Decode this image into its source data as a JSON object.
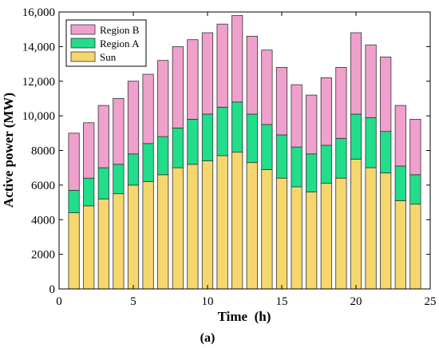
{
  "chart_data": {
    "type": "bar",
    "stacked": true,
    "x": [
      1,
      2,
      3,
      4,
      5,
      6,
      7,
      8,
      9,
      10,
      11,
      12,
      13,
      14,
      15,
      16,
      17,
      18,
      19,
      20,
      21,
      22,
      23,
      24
    ],
    "series": [
      {
        "name": "Sun",
        "color": "#f5d76e",
        "values": [
          4400,
          4800,
          5200,
          5500,
          6000,
          6200,
          6600,
          7000,
          7200,
          7400,
          7700,
          7900,
          7300,
          6900,
          6400,
          5900,
          5600,
          6100,
          6400,
          7500,
          7000,
          6700,
          5100,
          4900
        ]
      },
      {
        "name": "Region A",
        "color": "#22dd8a",
        "values": [
          1300,
          1600,
          1800,
          1700,
          1800,
          2200,
          2200,
          2300,
          2600,
          2700,
          2800,
          2900,
          2800,
          2600,
          2500,
          2300,
          2200,
          2200,
          2300,
          2600,
          2900,
          2400,
          2000,
          1700
        ]
      },
      {
        "name": "Region B",
        "color": "#f0a0cc",
        "values": [
          3300,
          3200,
          3600,
          3800,
          4200,
          4000,
          4400,
          4700,
          4600,
          4700,
          4800,
          5000,
          4500,
          4300,
          3900,
          3600,
          3400,
          3900,
          4100,
          4700,
          4200,
          4300,
          3500,
          3200
        ]
      }
    ],
    "xlabel": "Time  (h)",
    "ylabel": "Active power (MW)",
    "xlim": [
      0,
      25
    ],
    "ylim": [
      0,
      16000
    ],
    "x_ticks": [
      0,
      5,
      10,
      15,
      20,
      25
    ],
    "y_ticks": [
      0,
      2000,
      4000,
      6000,
      8000,
      10000,
      12000,
      14000,
      16000
    ],
    "y_tick_labels": [
      "0",
      "2000",
      "4000",
      "6000",
      "8000",
      "10,000",
      "12,000",
      "14,000",
      "16,000"
    ],
    "legend_position": "top-left",
    "legend_order": [
      "Region B",
      "Region A",
      "Sun"
    ],
    "caption": "(a)"
  }
}
